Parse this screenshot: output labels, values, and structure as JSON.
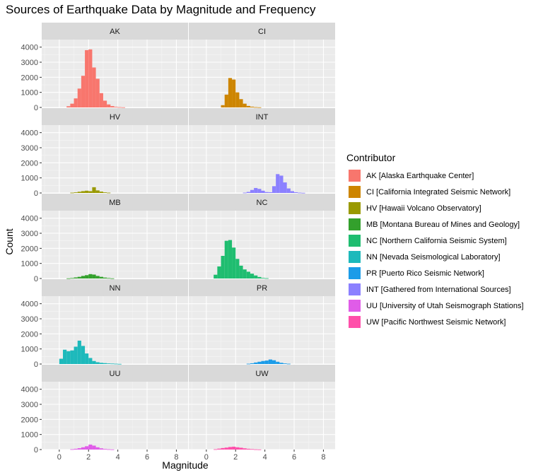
{
  "chart_data": {
    "type": "histogram-facets",
    "title": "Sources of Earthquake Data by Magnitude and Frequency",
    "xlabel": "Magnitude",
    "ylabel": "Count",
    "xlim": [
      -1.2,
      8.8
    ],
    "ylim": [
      0,
      4500
    ],
    "xticks": [
      0,
      2,
      4,
      6,
      8
    ],
    "yticks": [
      0,
      1000,
      2000,
      3000,
      4000
    ],
    "bin_start": -0.25,
    "bin_width": 0.25,
    "legend_title": "Contributor",
    "legend_position": "right",
    "grid": true,
    "panels": [
      {
        "code": "AK",
        "color": "#F8766D",
        "counts": [
          0,
          0,
          0,
          80,
          250,
          600,
          1250,
          2100,
          3800,
          3850,
          2650,
          1900,
          950,
          450,
          200,
          90,
          40,
          20,
          10
        ]
      },
      {
        "code": "CI",
        "color": "#CD8500",
        "counts": [
          0,
          0,
          0,
          0,
          0,
          150,
          850,
          1950,
          1850,
          1000,
          550,
          250,
          100,
          50,
          20,
          10
        ]
      },
      {
        "code": "HV",
        "color": "#999900",
        "counts": [
          0,
          0,
          0,
          0,
          20,
          40,
          80,
          120,
          150,
          120,
          380,
          170,
          90,
          40,
          20
        ]
      },
      {
        "code": "INT",
        "color": "#8B80FF",
        "counts": [
          0,
          0,
          0,
          0,
          0,
          0,
          0,
          0,
          0,
          0,
          0,
          20,
          70,
          200,
          330,
          270,
          150,
          60,
          50,
          450,
          1250,
          1150,
          700,
          300,
          120,
          50,
          20,
          10
        ]
      },
      {
        "code": "MB",
        "color": "#33A02C",
        "counts": [
          0,
          0,
          0,
          10,
          30,
          70,
          110,
          170,
          220,
          290,
          260,
          170,
          110,
          60,
          30,
          10
        ]
      },
      {
        "code": "NC",
        "color": "#1FBD70",
        "counts": [
          0,
          0,
          0,
          250,
          800,
          1500,
          2500,
          2550,
          2050,
          1300,
          850,
          600,
          450,
          320,
          200,
          100,
          40,
          20
        ]
      },
      {
        "code": "NN",
        "color": "#1DB9BB",
        "counts": [
          0,
          350,
          950,
          850,
          900,
          1150,
          1550,
          1200,
          700,
          400,
          200,
          120,
          80,
          60,
          40,
          30,
          20,
          10
        ]
      },
      {
        "code": "PR",
        "color": "#1C9CE8",
        "counts": [
          0,
          0,
          0,
          0,
          0,
          0,
          0,
          0,
          0,
          0,
          0,
          0,
          20,
          50,
          100,
          150,
          200,
          230,
          300,
          250,
          150,
          80,
          40,
          20
        ]
      },
      {
        "code": "UU",
        "color": "#E05CE8",
        "counts": [
          0,
          0,
          0,
          0,
          20,
          50,
          90,
          150,
          220,
          330,
          260,
          150,
          80,
          40,
          20,
          10
        ]
      },
      {
        "code": "UW",
        "color": "#FF4FAA",
        "counts": [
          0,
          0,
          0,
          20,
          60,
          100,
          130,
          170,
          190,
          150,
          120,
          80,
          50,
          30,
          15,
          8
        ]
      }
    ],
    "legend": [
      {
        "label": "AK [Alaska Earthquake Center]",
        "color": "#F8766D"
      },
      {
        "label": "CI [California Integrated Seismic Network]",
        "color": "#CD8500"
      },
      {
        "label": "HV [Hawaii Volcano Observatory]",
        "color": "#999900"
      },
      {
        "label": "MB [Montana Bureau of Mines and Geology]",
        "color": "#33A02C"
      },
      {
        "label": "NC [Northern California Seismic System]",
        "color": "#1FBD70"
      },
      {
        "label": "NN [Nevada Seismological Laboratory]",
        "color": "#1DB9BB"
      },
      {
        "label": "PR [Puerto Rico Seismic Network]",
        "color": "#1C9CE8"
      },
      {
        "label": "INT [Gathered from International Sources]",
        "color": "#8B80FF"
      },
      {
        "label": "UU [University of Utah Seismograph Stations]",
        "color": "#E05CE8"
      },
      {
        "label": "UW [Pacific Northwest Seismic Network]",
        "color": "#FF4FAA"
      }
    ]
  }
}
